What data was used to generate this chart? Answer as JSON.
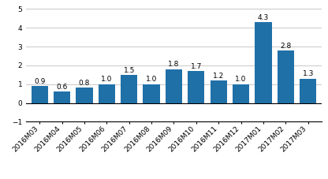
{
  "categories": [
    "2016M03",
    "2016M04",
    "2016M05",
    "2016M06",
    "2016M07",
    "2016M08",
    "2016M09",
    "2016M10",
    "2016M11",
    "2016M12",
    "2017M01",
    "2017M02",
    "2017M03"
  ],
  "values": [
    0.9,
    0.6,
    0.8,
    1.0,
    1.5,
    1.0,
    1.8,
    1.7,
    1.2,
    1.0,
    4.3,
    2.8,
    1.3
  ],
  "bar_hex": "#2070a8",
  "ylim": [
    -1,
    5
  ],
  "tick_fontsize": 6.5,
  "bar_width": 0.75,
  "value_label_fontsize": 6.5,
  "bg_color": "#ffffff",
  "grid_color": "#c8c8c8"
}
